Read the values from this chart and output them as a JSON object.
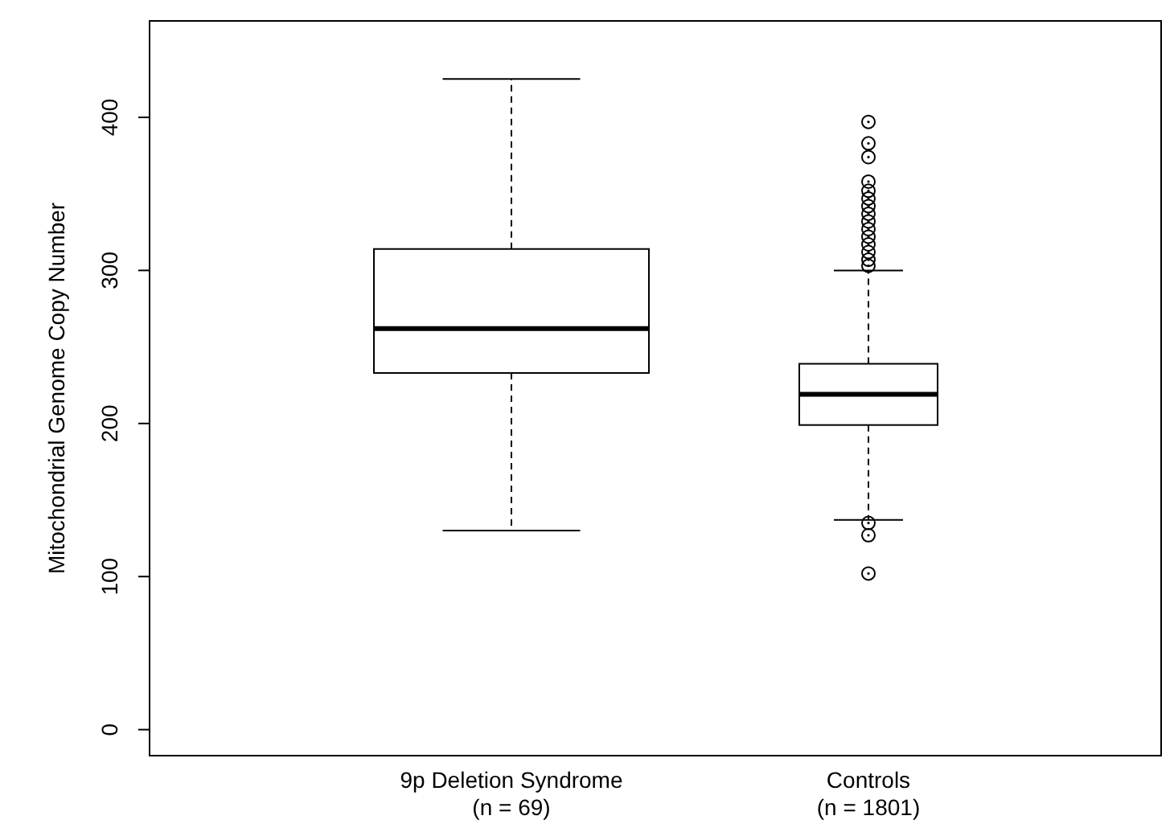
{
  "chart_data": {
    "type": "box",
    "ylabel": "Mitochondrial Genome Copy Number",
    "categories": [
      "9p Deletion Syndrome\n(n = 69)",
      "Controls\n(n = 1801)"
    ],
    "boxes": [
      {
        "low": 130,
        "q1": 233,
        "median": 262,
        "q3": 314,
        "high": 425
      },
      {
        "low": 137,
        "q1": 199,
        "median": 219,
        "q3": 239,
        "high": 300,
        "outliers": [
          397,
          383,
          374,
          358,
          352,
          347,
          342,
          337,
          332,
          327,
          322,
          317,
          312,
          307,
          303,
          135,
          127,
          102
        ]
      }
    ],
    "ylim": [
      -17,
      463
    ],
    "yticks": [
      0,
      100,
      200,
      300,
      400
    ],
    "grid": false,
    "line_style": "dashed",
    "marker": "circle"
  }
}
